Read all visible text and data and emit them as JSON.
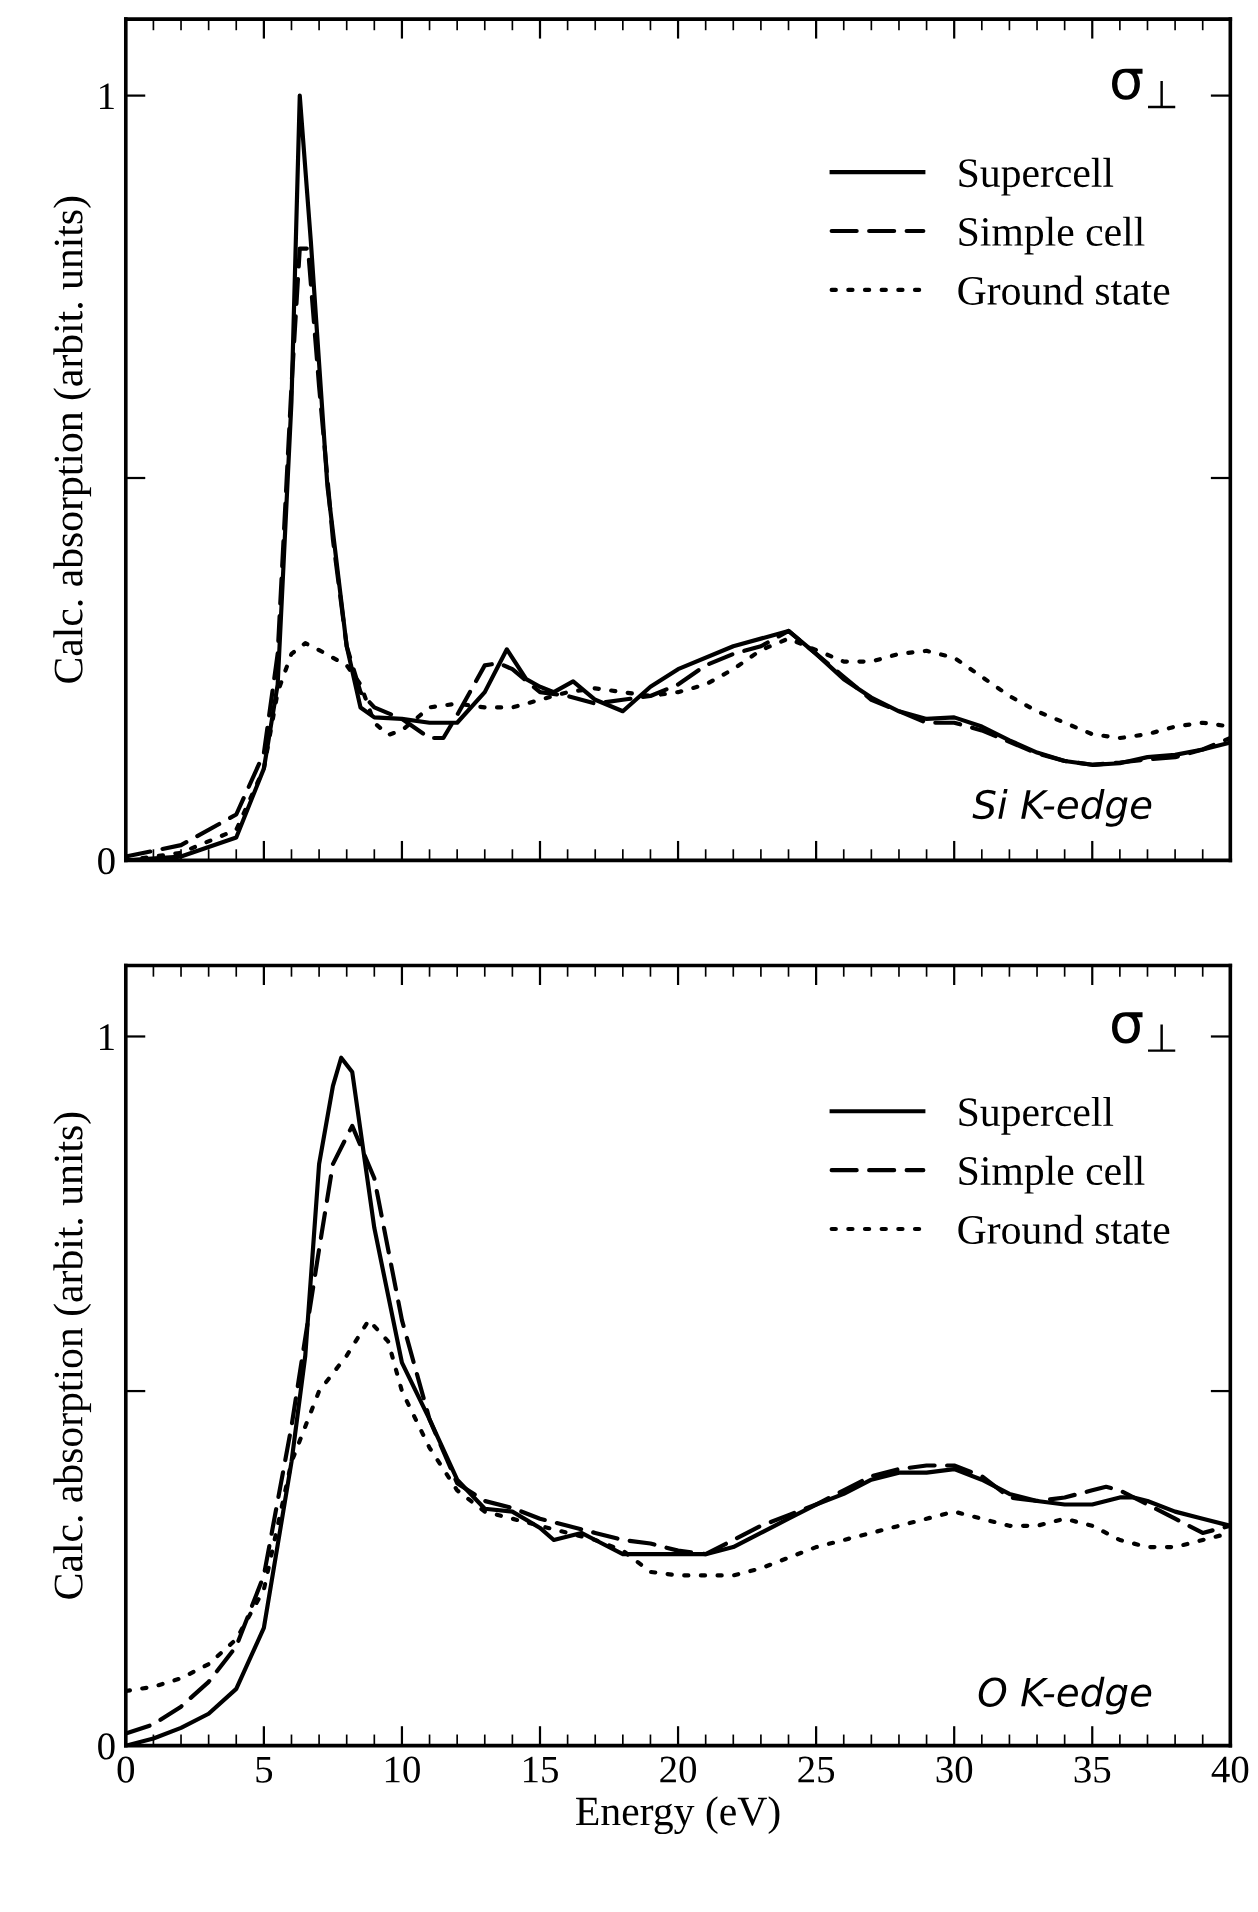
{
  "chart_data": [
    {
      "type": "line",
      "ylabel": "Calc. absorption (arbit. units)",
      "annotations": [
        "σ$_{⊥}$",
        "Si K-edge"
      ],
      "xlim": [
        0,
        40
      ],
      "xticks": [
        0,
        5,
        10,
        15,
        20,
        25,
        30,
        35,
        40
      ],
      "ylim": [
        0,
        1.1
      ],
      "yticks": [
        0,
        {
          "value": 0.5,
          "label": null
        },
        1
      ],
      "tick_labels": "y",
      "legend": "top right",
      "grid": false,
      "series": [
        {
          "name": "Supercell",
          "color": "#000000",
          "line_style": "solid",
          "x": [
            0,
            2,
            4,
            5,
            5.5,
            6,
            6.3,
            6.7,
            7.3,
            8,
            8.5,
            9,
            10,
            11,
            12,
            13,
            13.8,
            14.5,
            15,
            15.5,
            16.2,
            17,
            18,
            19,
            20,
            22,
            24,
            25,
            26,
            27,
            28,
            29,
            30,
            31,
            32,
            33,
            34,
            35,
            36,
            37,
            38,
            39,
            40
          ],
          "values": [
            0,
            0.005,
            0.03,
            0.12,
            0.23,
            0.6,
            1.0,
            0.81,
            0.49,
            0.28,
            0.2,
            0.187,
            0.185,
            0.18,
            0.18,
            0.22,
            0.276,
            0.237,
            0.227,
            0.22,
            0.234,
            0.21,
            0.195,
            0.227,
            0.25,
            0.28,
            0.3,
            0.27,
            0.237,
            0.213,
            0.195,
            0.185,
            0.187,
            0.175,
            0.157,
            0.141,
            0.13,
            0.125,
            0.127,
            0.135,
            0.138,
            0.145,
            0.154
          ]
        },
        {
          "name": "Simple cell",
          "color": "#000000",
          "line_style": "dashed",
          "x": [
            0,
            2,
            4,
            5,
            5.5,
            6,
            6.3,
            6.6,
            7,
            7.5,
            8,
            8.5,
            9,
            10,
            11,
            11.5,
            12,
            13,
            13.5,
            14,
            15,
            16,
            17,
            18,
            19,
            20,
            21,
            22,
            23,
            24,
            25,
            26,
            27,
            28,
            29,
            30,
            31,
            32,
            33,
            34,
            35,
            36,
            37,
            38,
            39,
            40
          ],
          "values": [
            0.005,
            0.02,
            0.06,
            0.14,
            0.27,
            0.62,
            0.8,
            0.8,
            0.62,
            0.42,
            0.28,
            0.22,
            0.2,
            0.185,
            0.16,
            0.16,
            0.19,
            0.255,
            0.258,
            0.25,
            0.22,
            0.215,
            0.205,
            0.21,
            0.215,
            0.23,
            0.255,
            0.27,
            0.28,
            0.3,
            0.27,
            0.24,
            0.21,
            0.195,
            0.18,
            0.18,
            0.17,
            0.155,
            0.14,
            0.13,
            0.125,
            0.128,
            0.132,
            0.135,
            0.145,
            0.16
          ]
        },
        {
          "name": "Ground state",
          "color": "#000000",
          "line_style": "dotted",
          "x": [
            0,
            2,
            4,
            5,
            5.5,
            6,
            6.5,
            7,
            8,
            8.5,
            9,
            9.5,
            10,
            11,
            12,
            13,
            14,
            15,
            16,
            17,
            18,
            19,
            20,
            21,
            22,
            23,
            24,
            25,
            26,
            27,
            28,
            29,
            30,
            31,
            32,
            33,
            34,
            35,
            36,
            37,
            38,
            39,
            40
          ],
          "values": [
            0,
            0.01,
            0.04,
            0.12,
            0.22,
            0.27,
            0.284,
            0.275,
            0.255,
            0.23,
            0.18,
            0.164,
            0.17,
            0.2,
            0.205,
            0.2,
            0.2,
            0.21,
            0.22,
            0.225,
            0.22,
            0.215,
            0.22,
            0.23,
            0.25,
            0.275,
            0.29,
            0.275,
            0.26,
            0.26,
            0.27,
            0.274,
            0.265,
            0.24,
            0.215,
            0.195,
            0.18,
            0.165,
            0.16,
            0.165,
            0.175,
            0.18,
            0.175
          ]
        }
      ]
    },
    {
      "type": "line",
      "xlabel": "Energy (eV)",
      "ylabel": "Calc. absorption (arbit. units)",
      "annotations": [
        "σ$_{⊥}$",
        "O K-edge"
      ],
      "xlim": [
        0,
        40
      ],
      "xticks": [
        0,
        5,
        10,
        15,
        20,
        25,
        30,
        35,
        40
      ],
      "ylim": [
        0,
        1.1
      ],
      "yticks": [
        0,
        {
          "value": 0.5,
          "label": null
        },
        1
      ],
      "legend": "top right",
      "grid": false,
      "series": [
        {
          "name": "Supercell",
          "color": "#000000",
          "line_style": "solid",
          "x": [
            0,
            1,
            2,
            3,
            4,
            5,
            6,
            6.5,
            7,
            7.5,
            7.8,
            8.2,
            9,
            10,
            11,
            12,
            13,
            14,
            15,
            15.5,
            16.5,
            17,
            18,
            19,
            20,
            21,
            22,
            23,
            24,
            25,
            26,
            27,
            28,
            29,
            30,
            31,
            32,
            33,
            34,
            35,
            36,
            36.5,
            37,
            38,
            39,
            40
          ],
          "values": [
            0,
            0.01,
            0.025,
            0.045,
            0.08,
            0.166,
            0.4,
            0.55,
            0.82,
            0.93,
            0.97,
            0.95,
            0.73,
            0.54,
            0.46,
            0.375,
            0.334,
            0.33,
            0.307,
            0.29,
            0.3,
            0.29,
            0.27,
            0.27,
            0.27,
            0.27,
            0.28,
            0.3,
            0.32,
            0.34,
            0.355,
            0.375,
            0.385,
            0.385,
            0.39,
            0.375,
            0.355,
            0.345,
            0.34,
            0.34,
            0.35,
            0.35,
            0.345,
            0.33,
            0.32,
            0.31
          ]
        },
        {
          "name": "Simple cell",
          "color": "#000000",
          "line_style": "dashed",
          "x": [
            0,
            1,
            2,
            3,
            4,
            5,
            6,
            7,
            7.5,
            8.2,
            9,
            10,
            11,
            12,
            13,
            14,
            15,
            16,
            17,
            18,
            19,
            20,
            21,
            22,
            23,
            24,
            25,
            26,
            27,
            28,
            29,
            30,
            31,
            32,
            33,
            34,
            35,
            35.5,
            36,
            37,
            38,
            39,
            40
          ],
          "values": [
            0.017,
            0.03,
            0.055,
            0.09,
            0.14,
            0.24,
            0.45,
            0.7,
            0.82,
            0.874,
            0.8,
            0.6,
            0.46,
            0.37,
            0.345,
            0.335,
            0.32,
            0.31,
            0.3,
            0.29,
            0.285,
            0.275,
            0.27,
            0.29,
            0.31,
            0.325,
            0.34,
            0.36,
            0.38,
            0.39,
            0.395,
            0.395,
            0.38,
            0.35,
            0.345,
            0.35,
            0.36,
            0.365,
            0.36,
            0.34,
            0.32,
            0.3,
            0.31
          ]
        },
        {
          "name": "Ground state",
          "color": "#000000",
          "line_style": "dotted",
          "x": [
            0,
            1,
            2,
            3,
            4,
            5,
            6,
            7,
            8,
            8.8,
            9.5,
            10,
            11,
            12,
            13,
            14,
            15,
            16,
            17,
            18,
            19,
            20,
            21,
            22,
            23,
            24,
            25,
            26,
            27,
            28,
            29,
            30,
            31,
            32,
            33,
            34,
            35,
            36,
            37,
            38,
            39,
            40
          ],
          "values": [
            0.077,
            0.083,
            0.095,
            0.115,
            0.15,
            0.22,
            0.4,
            0.5,
            0.55,
            0.6,
            0.57,
            0.5,
            0.42,
            0.36,
            0.33,
            0.32,
            0.31,
            0.3,
            0.29,
            0.275,
            0.245,
            0.24,
            0.24,
            0.24,
            0.25,
            0.265,
            0.28,
            0.29,
            0.3,
            0.31,
            0.32,
            0.33,
            0.32,
            0.31,
            0.31,
            0.32,
            0.31,
            0.29,
            0.28,
            0.28,
            0.29,
            0.3
          ]
        }
      ]
    }
  ]
}
